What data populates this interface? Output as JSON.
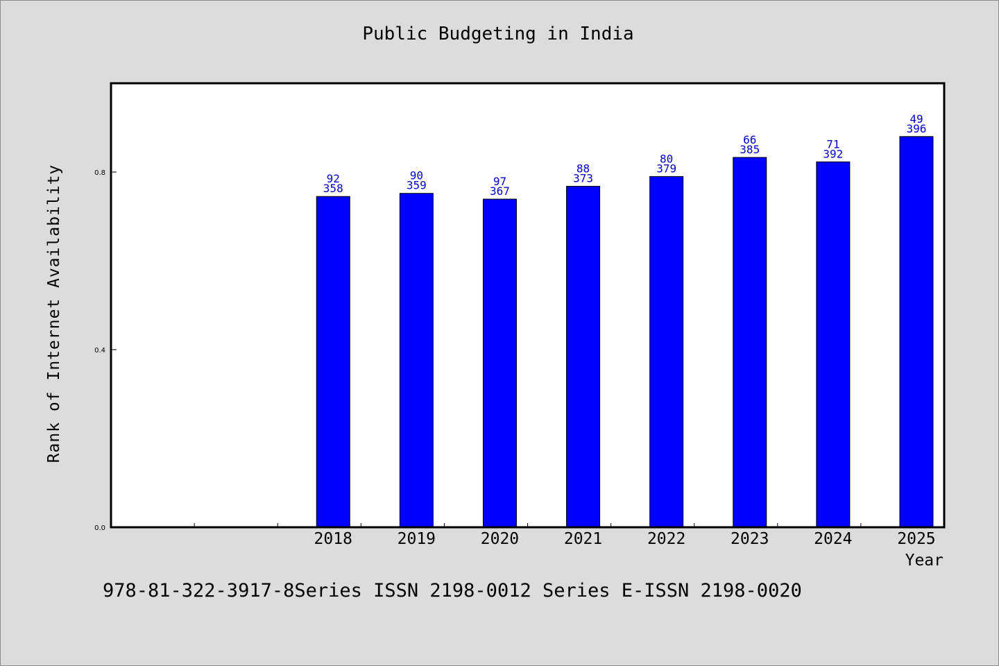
{
  "chart_data": {
    "type": "bar",
    "title": "Public Budgeting in India",
    "xlabel": "Year",
    "ylabel": "Rank of Internet Availability",
    "categories": [
      "",
      "",
      "2018",
      "2019",
      "2020",
      "2021",
      "2022",
      "2023",
      "2024",
      "2025"
    ],
    "values": [
      null,
      null,
      0.745,
      0.752,
      0.739,
      0.768,
      0.79,
      0.833,
      0.823,
      0.88
    ],
    "bar_labels_top": [
      "",
      "",
      "92",
      "90",
      "97",
      "88",
      "80",
      "66",
      "71",
      "49"
    ],
    "bar_labels_bottom": [
      "",
      "",
      "358",
      "359",
      "367",
      "373",
      "379",
      "385",
      "392",
      "396"
    ],
    "yticks": [
      "0.0",
      "0.4",
      "0.8"
    ],
    "ytick_values": [
      0.0,
      0.4,
      0.8
    ],
    "ylim": [
      0,
      1.0
    ],
    "grid": false,
    "bar_color": "#0000ff",
    "label_color": "#0000cc"
  },
  "footer_text": "978-81-322-3917-8Series ISSN 2198-0012 Series E-ISSN 2198-0020"
}
